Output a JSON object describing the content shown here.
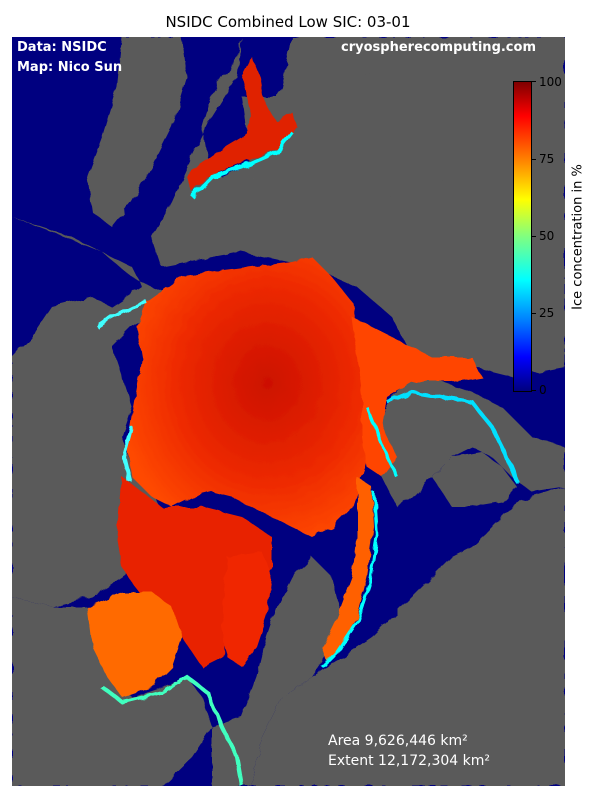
{
  "title": "NSIDC Combined Low SIC: 03-01",
  "credits": {
    "data": "Data: NSIDC",
    "map": "Map: Nico Sun",
    "site": "cryospherecomputing.com"
  },
  "stats": {
    "area": "Area 9,626,446 km²",
    "extent": "Extent 12,172,304 km²"
  },
  "colorbar": {
    "label": "Ice concentration in %",
    "min": 0,
    "max": 100,
    "ticks": [
      "0",
      "25",
      "50",
      "75",
      "100"
    ],
    "colormap": "jet"
  },
  "colors": {
    "ocean": "#000080",
    "land": "#5a5a5a",
    "ice_high": "#e02000",
    "ice_edge": "#00ffff"
  }
}
